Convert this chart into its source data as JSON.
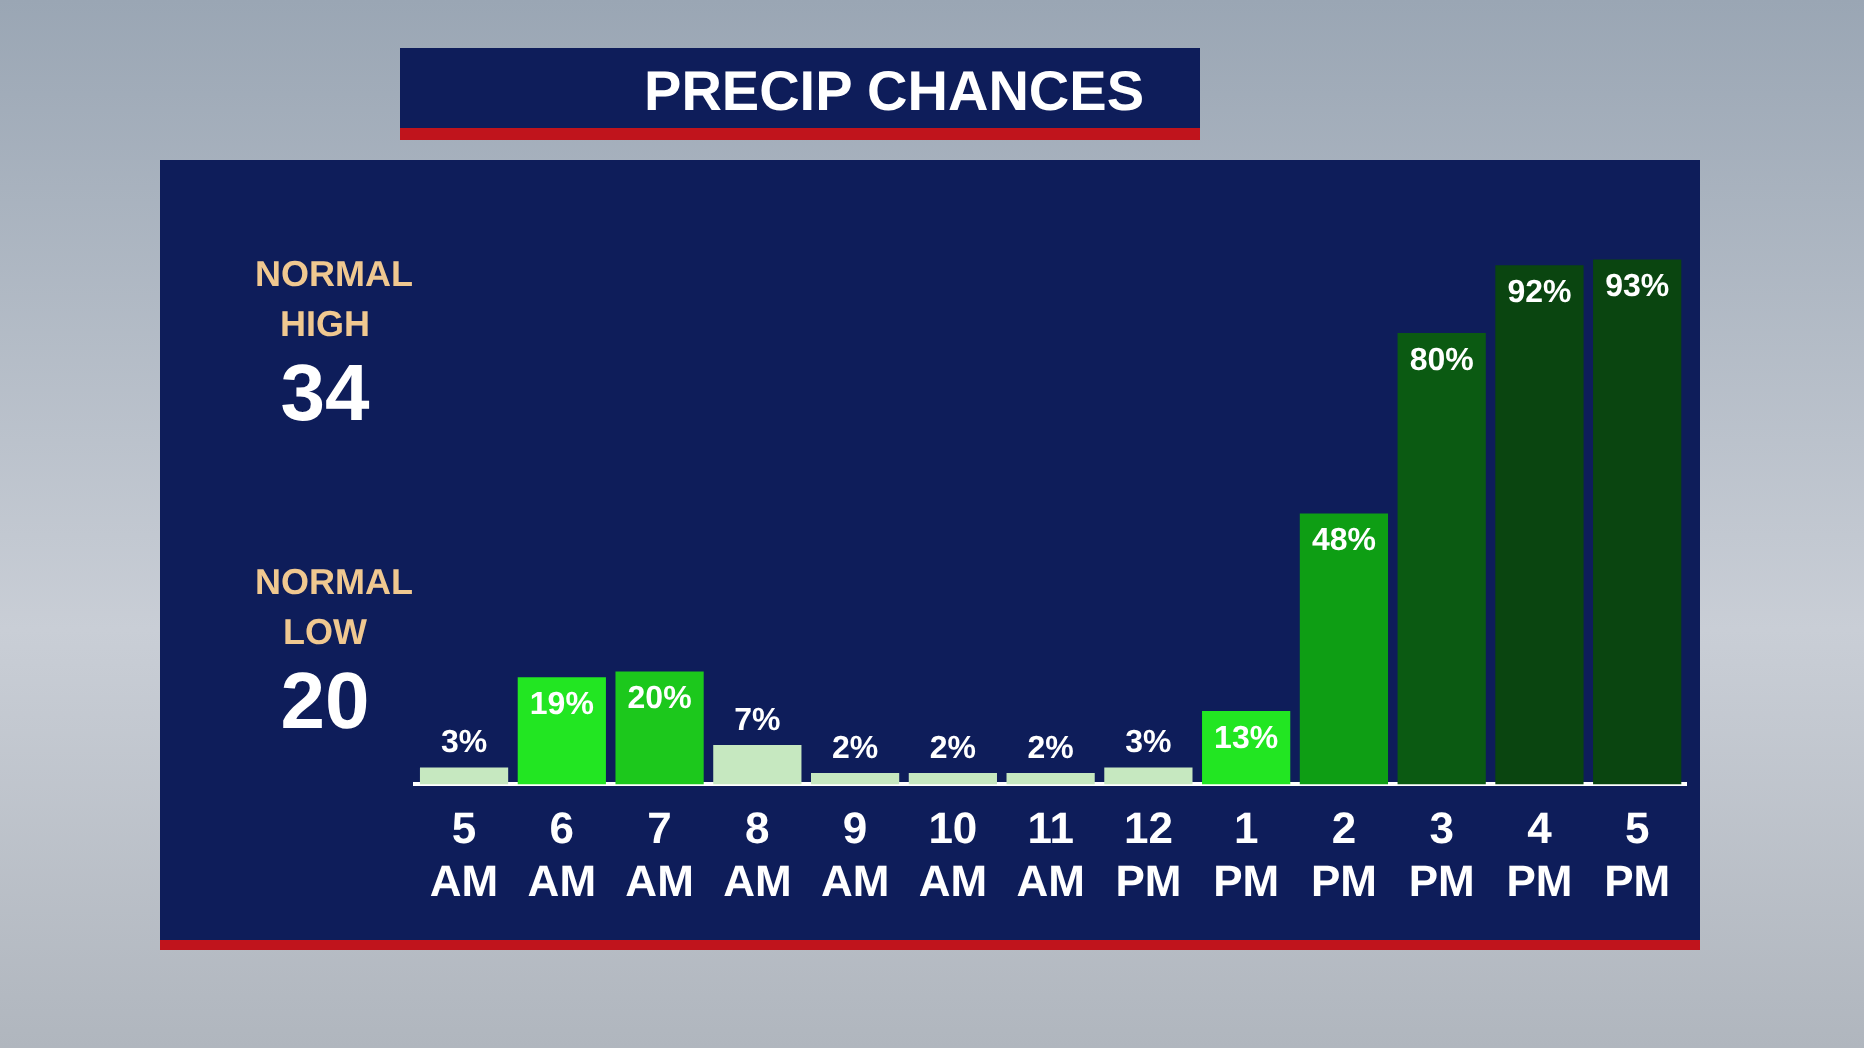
{
  "chart_data": {
    "type": "bar",
    "title": "PRECIP CHANCES",
    "categories": [
      "5 AM",
      "6 AM",
      "7 AM",
      "8 AM",
      "9 AM",
      "10 AM",
      "11 AM",
      "12 PM",
      "1 PM",
      "2 PM",
      "3 PM",
      "4 PM",
      "5 PM"
    ],
    "values": [
      3,
      19,
      20,
      7,
      2,
      2,
      2,
      3,
      13,
      48,
      80,
      92,
      93
    ],
    "value_labels": [
      "3%",
      "19%",
      "20%",
      "7%",
      "2%",
      "2%",
      "2%",
      "3%",
      "13%",
      "48%",
      "80%",
      "92%",
      "93%"
    ],
    "colors": [
      "#c6e8c0",
      "#22e622",
      "#1cc81c",
      "#c6e8c0",
      "#c6e8c0",
      "#c6e8c0",
      "#c6e8c0",
      "#c6e8c0",
      "#22e622",
      "#0e9e14",
      "#0b5a12",
      "#0a4510",
      "#0a4510"
    ],
    "tick_labels": "x",
    "grid": false,
    "legend": false,
    "annotations": [
      "NORMAL HIGH",
      "34",
      "NORMAL LOW",
      "20"
    ]
  }
}
